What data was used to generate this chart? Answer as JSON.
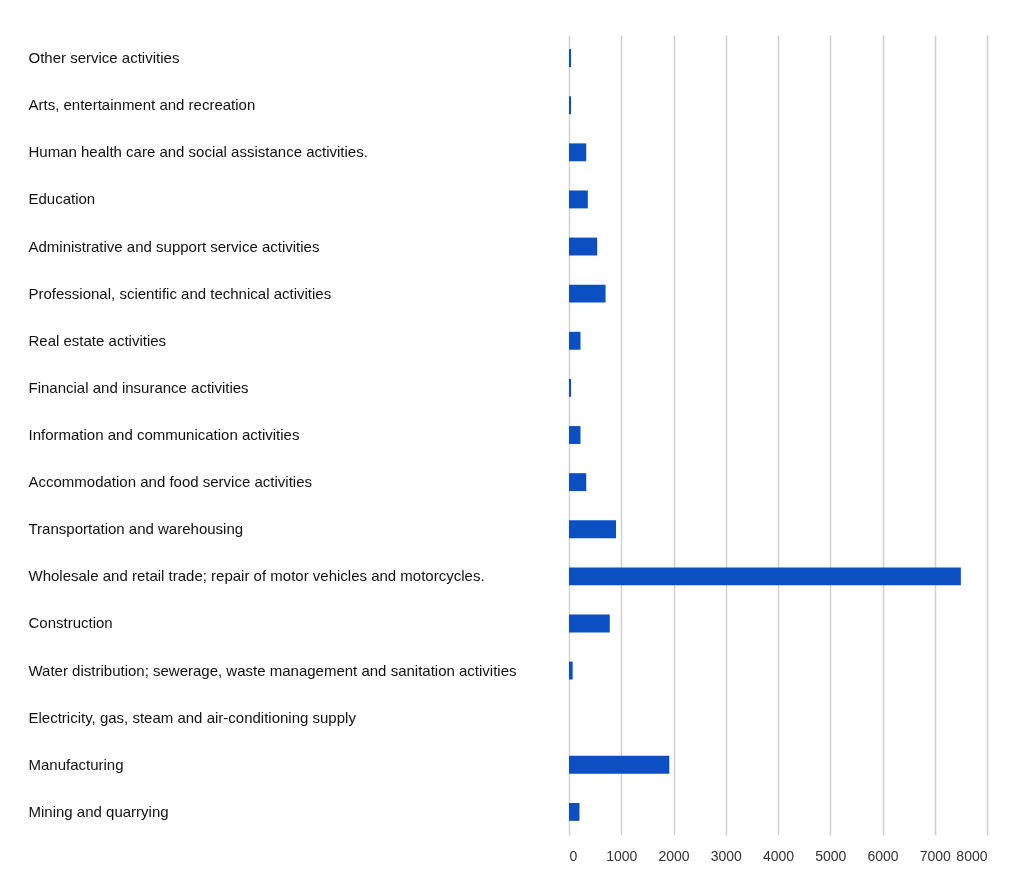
{
  "chart_data": {
    "type": "bar",
    "orientation": "horizontal",
    "categories": [
      "Other service activities",
      "Arts, entertainment and recreation",
      "Human health care and social assistance activities.",
      "Education",
      "Administrative and support service activities",
      "Professional, scientific and technical activities",
      "Real estate activities",
      "Financial and insurance activities",
      "Information and communication activities",
      "Accommodation and food service activities",
      "Transportation and warehousing",
      "Wholesale and retail trade; repair of motor vehicles and motorcycles.",
      "Construction",
      "Water distribution; sewerage, waste management and sanitation activities",
      "Electricity, gas, steam and air-conditioning supply",
      "Manufacturing",
      "Mining and quarrying"
    ],
    "values": [
      40,
      40,
      330,
      360,
      540,
      700,
      220,
      40,
      220,
      330,
      900,
      7500,
      780,
      70,
      0,
      1920,
      200
    ],
    "color": "#0b4fc2",
    "xlim": [
      0,
      8000
    ],
    "xticks": [
      0,
      1000,
      2000,
      3000,
      4000,
      5000,
      6000,
      7000,
      8000
    ],
    "grid": "x"
  }
}
